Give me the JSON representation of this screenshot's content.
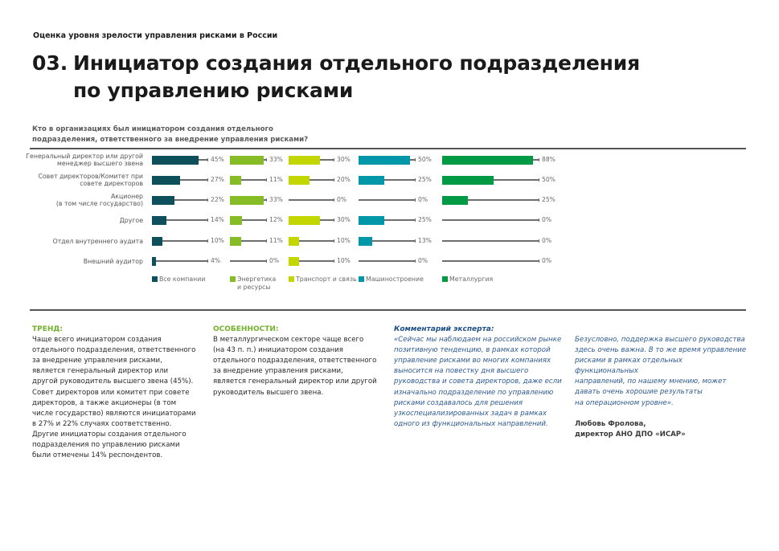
{
  "header": {
    "supertitle": "Оценка уровня зрелости управления рисками в России",
    "number": "03.",
    "title_line1": "Инициатор создания отдельного подразделения",
    "title_line2": "по управлению рисками"
  },
  "chart_data": {
    "type": "bar",
    "orientation": "horizontal",
    "title": "Кто в организациях был инициатором создания отдельного подразделения, ответственного за внедрение управления рисками?",
    "title_line1": "Кто в организациях был инициатором создания отдельного",
    "title_line2": "подразделения, ответственного за внедрение управления рисками?",
    "value_unit": "%",
    "xlim": [
      0,
      100
    ],
    "legend_position": "bottom",
    "categories": [
      {
        "line1": "Генеральный директор или другой",
        "line2": "менеджер высшего звена"
      },
      {
        "line1": "Совет директоров/Комитет при",
        "line2": "совете директоров"
      },
      {
        "line1": "Акционер",
        "line2": "(в том числе государство)"
      },
      {
        "line1": "Другое",
        "line2": ""
      },
      {
        "line1": "Отдел внутреннего аудита",
        "line2": ""
      },
      {
        "line1": "Внешний аудитор",
        "line2": ""
      }
    ],
    "series": [
      {
        "name": "Все компании",
        "name_line1": "Все компании",
        "name_line2": "",
        "color": "#0d4f5a",
        "values": [
          45,
          27,
          22,
          14,
          10,
          4
        ],
        "labels": [
          "45%",
          "27%",
          "22%",
          "14%",
          "10%",
          "4%"
        ]
      },
      {
        "name": "Энергетика и ресурсы",
        "name_line1": "Энергетика",
        "name_line2": "и ресурсы",
        "color": "#86bc25",
        "values": [
          33,
          11,
          33,
          12,
          11,
          0
        ],
        "labels": [
          "33%",
          "11%",
          "33%",
          "12%",
          "11%",
          "0%"
        ]
      },
      {
        "name": "Транспорт и связь",
        "name_line1": "Транспорт и связь",
        "name_line2": "",
        "color": "#c4d600",
        "values": [
          30,
          20,
          0,
          30,
          10,
          10
        ],
        "labels": [
          "30%",
          "20%",
          "0%",
          "30%",
          "10%",
          "10%"
        ]
      },
      {
        "name": "Машиностроение",
        "name_line1": "Машиностроение",
        "name_line2": "",
        "color": "#0097a9",
        "values": [
          50,
          25,
          0,
          25,
          13,
          0
        ],
        "labels": [
          "50%",
          "25%",
          "0%",
          "25%",
          "13%",
          "0%"
        ]
      },
      {
        "name": "Металлургия",
        "name_line1": "Металлургия",
        "name_line2": "",
        "color": "#009a44",
        "values": [
          88,
          50,
          25,
          0,
          0,
          0
        ],
        "labels": [
          "88%",
          "50%",
          "25%",
          "0%",
          "0%",
          "0%"
        ]
      }
    ]
  },
  "trend": {
    "heading": "ТРЕНД:",
    "lines": [
      "Чаще всего инициатором создания",
      "отдельного подразделения, ответственного",
      "за внедрение управления рисками,",
      "является генеральный директор или",
      "другой руководитель высшего звена (45%).",
      "Совет директоров или комитет при совете",
      "директоров, а также акционеры (в том",
      "числе государство) являются инициаторами",
      "в 27% и 22% случаях соответственно.",
      "Другие инициаторы создания отдельного",
      "подразделения по управлению рисками",
      "были отмечены 14% респондентов."
    ]
  },
  "features": {
    "heading": "ОСОБЕННОСТИ:",
    "lines": [
      "В металлургическом секторе чаще всего",
      "(на 43 п. п.) инициатором создания",
      "отдельного подразделения, ответственного",
      "за внедрение управления рисками,",
      "является генеральный директор или другой",
      "руководитель высшего звена."
    ]
  },
  "expert": {
    "heading": "Комментарий эксперта:",
    "lines": [
      "«Сейчас мы наблюдаем на российском рынке",
      "позитивную тенденцию, в рамках которой",
      "управление рисками во многих компаниях",
      "выносится на повестку дня высшего",
      "руководства и совета директоров, даже если",
      "изначально подразделение по управлению",
      "рисками создавалось для решения",
      "узкоспециализированных задач в рамках",
      "одного из функциональных направлений."
    ],
    "continuation_lines": [
      "Безусловно, поддержка высшего руководства",
      "здесь очень важна. В то же время управление",
      "рисками в рамках отдельных функциональных",
      "направлений, по нашему мнению, может",
      "давать очень хорошие результаты",
      "на операционном уровне»."
    ],
    "author_name": "Любовь Фролова,",
    "author_title": "директор АНО ДПО «ИСАР»"
  }
}
